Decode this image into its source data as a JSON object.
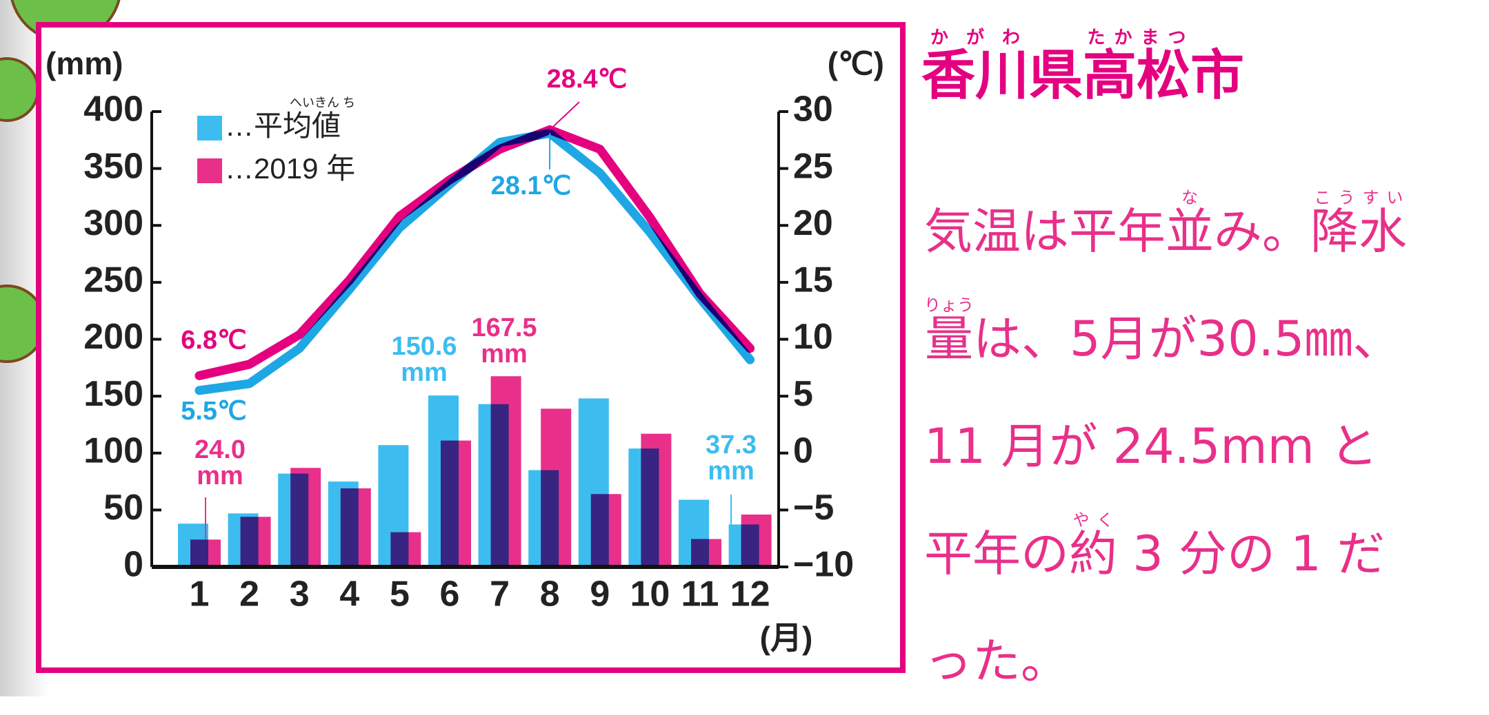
{
  "chart_data": {
    "type": "combo",
    "categories": [
      "1",
      "2",
      "3",
      "4",
      "5",
      "6",
      "7",
      "8",
      "9",
      "10",
      "11",
      "12"
    ],
    "x_unit": "(月)",
    "y_unit": "(mm)",
    "y2_unit": "(℃)",
    "ylim": [
      0,
      400
    ],
    "yticks": [
      0,
      50,
      100,
      150,
      200,
      250,
      300,
      350,
      400
    ],
    "y2lim": [
      -10,
      30
    ],
    "y2ticks": [
      {
        "value": -10,
        "label": "−10"
      },
      {
        "value": -5,
        "label": "−5"
      },
      0,
      5,
      10,
      15,
      20,
      25,
      30
    ],
    "legend_position": "upper-left",
    "legend": [
      {
        "name": "…平均値",
        "ruby": "へいきん ち",
        "color": "#3dbdef"
      },
      {
        "name": "…2019 年",
        "color": "#e8308a"
      }
    ],
    "series": [
      {
        "type": "bar",
        "color": "#3dbdef",
        "values": [
          38,
          47,
          82,
          75,
          107,
          150.6,
          143,
          85,
          148,
          104,
          59,
          37.3
        ],
        "value_labels": [
          null,
          null,
          null,
          null,
          null,
          "150.6\nmm",
          null,
          null,
          null,
          null,
          null,
          "37.3\nmm"
        ]
      },
      {
        "type": "bar",
        "color": "#e8308a",
        "values": [
          24.0,
          44,
          87,
          69,
          30.5,
          111,
          167.5,
          139,
          64,
          117,
          24.5,
          46
        ],
        "value_labels": [
          "24.0\nmm",
          null,
          null,
          null,
          null,
          null,
          "167.5\nmm",
          null,
          null,
          null,
          null,
          null
        ]
      },
      {
        "type": "line",
        "axis": "y2",
        "color": "#1ea7e4",
        "values": [
          5.5,
          6.1,
          9.2,
          14.4,
          19.8,
          23.6,
          27.3,
          28.1,
          24.6,
          19.4,
          13.6,
          8.2
        ],
        "value_labels": [
          "5.5℃",
          null,
          null,
          null,
          null,
          null,
          null,
          "28.1℃",
          null,
          null,
          null,
          null
        ]
      },
      {
        "type": "line",
        "axis": "y2",
        "color": "#e4007f",
        "values": [
          6.8,
          7.8,
          10.4,
          15.2,
          20.8,
          24.0,
          26.7,
          28.4,
          26.7,
          20.7,
          14.0,
          9.2
        ],
        "value_labels": [
          "6.8℃",
          null,
          null,
          null,
          null,
          null,
          null,
          "28.4℃",
          null,
          null,
          null,
          null
        ]
      }
    ]
  },
  "article": {
    "title": [
      {
        "base": "香川",
        "ruby": "かがわ"
      },
      "県",
      {
        "base": "高松",
        "ruby": "たかまつ"
      },
      "市"
    ],
    "body": [
      [
        "気温は平年",
        {
          "base": "並",
          "ruby": "な"
        },
        "み。",
        {
          "base": "降水",
          "ruby": "こうすい"
        }
      ],
      [
        {
          "base": "量",
          "ruby": "りょう"
        },
        "は、5月が30.5㎜、"
      ],
      [
        "11 月が 24.5mm と"
      ],
      [
        "平年の",
        {
          "base": "約",
          "ruby": "やく"
        },
        " 3 分の 1 だ"
      ],
      [
        "った。"
      ]
    ]
  }
}
